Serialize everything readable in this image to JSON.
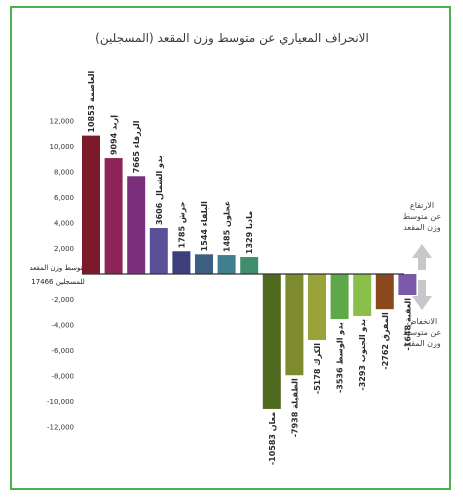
{
  "chart_data": {
    "type": "bar",
    "title": "الانحراف المعياري عن متوسط وزن المقعد (المسجلين)",
    "baseline_label": [
      "متوسط وزن المقعد",
      "للمسجلين 17466"
    ],
    "yticks": [
      12000,
      10000,
      8000,
      6000,
      4000,
      2000,
      -2000,
      -4000,
      -6000,
      -8000,
      -10000,
      -12000
    ],
    "ytick_labels": [
      "12,000",
      "10,000",
      "8,000",
      "6,000",
      "4,000",
      "2,000",
      "-2,000",
      "-4,000",
      "-6,000",
      "-8,000",
      "-10,000",
      "-12,000"
    ],
    "ylim": [
      -13000,
      13000
    ],
    "categories": [
      "العاصمة",
      "إربد",
      "الزرقاء",
      "بدو الشمال",
      "جرش",
      "البلقاء",
      "عجلون",
      "مادبا",
      "معان",
      "الطفيلة",
      "الكرك",
      "بدو الوسط",
      "بدو الجنوب",
      "المفرق",
      "العقبة"
    ],
    "values": [
      10853,
      9094,
      7665,
      3606,
      1785,
      1544,
      1485,
      1329,
      -10583,
      -7938,
      -5178,
      -3536,
      -3293,
      -2762,
      -1648
    ],
    "value_labels": [
      "10853",
      "9094",
      "7665",
      "3606",
      "1785",
      "1544",
      "1485",
      "1329",
      "-10583",
      "-7938",
      "-5178",
      "-3536",
      "-3293",
      "-2762",
      "-1648"
    ],
    "colors": [
      "#7b1a2a",
      "#8e2357",
      "#7a2f7c",
      "#5c4f9a",
      "#3d3f7a",
      "#3d5f82",
      "#3f7f8f",
      "#3f8f6e",
      "#4f6a1f",
      "#7d8a2e",
      "#9aa23a",
      "#5fa84a",
      "#8ac04a",
      "#8a4a1e",
      "#7a5aa8"
    ],
    "annotations": {
      "up": [
        "الارتفاع",
        "عن متوسط",
        "وزن المقعد"
      ],
      "down": [
        "الانخفاض",
        "عن متوسط",
        "وزن المقعد"
      ]
    },
    "arrow_color": "#c8c8c8",
    "axis_color": "#333333",
    "grid": false
  }
}
